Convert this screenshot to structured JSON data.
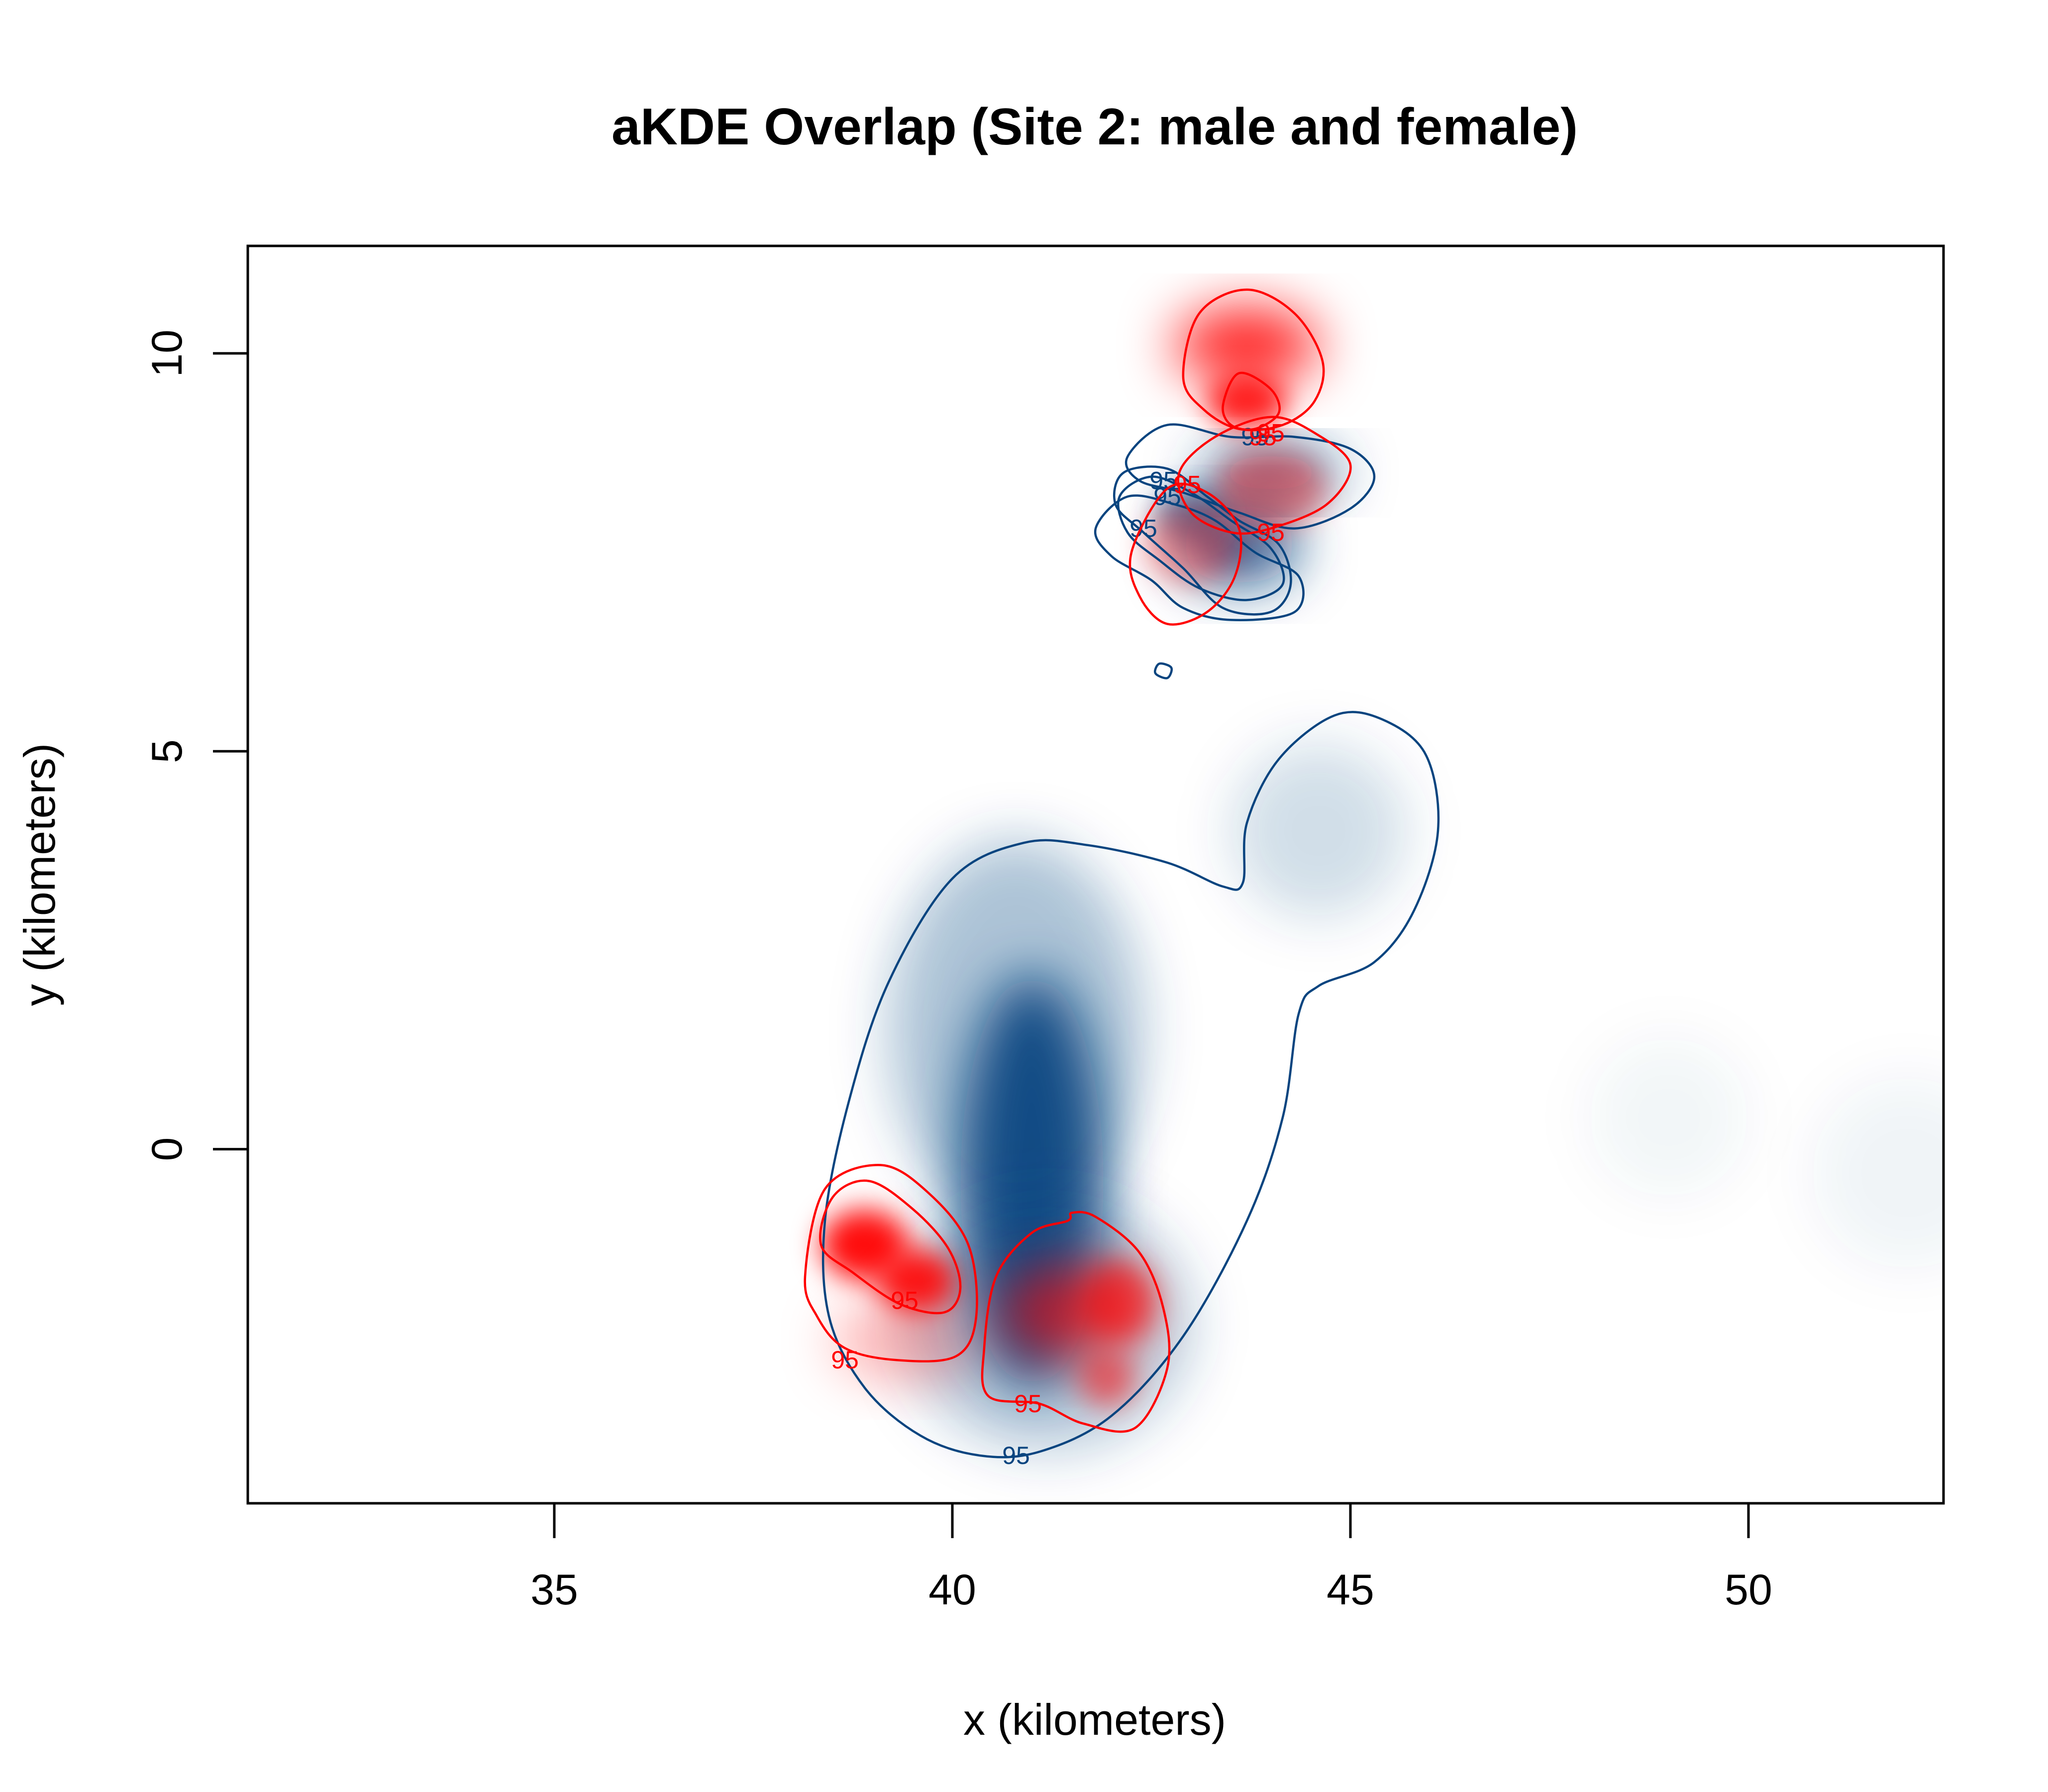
{
  "chart_data": {
    "type": "contour",
    "title": "aKDE Overlap (Site 2: male and female)",
    "xlabel": "x (kilometers)",
    "ylabel": "y (kilometers)",
    "xlim": [
      31.15,
      52.45
    ],
    "ylim": [
      -4.45,
      11.35
    ],
    "xticks": [
      35,
      40,
      45,
      50
    ],
    "yticks": [
      0,
      5,
      10
    ],
    "xtick_labels": [
      "35",
      "40",
      "45",
      "50"
    ],
    "ytick_labels": [
      "0",
      "5",
      "10"
    ],
    "grid": false,
    "legend": "none",
    "colors": {
      "male": "#08447f",
      "female": "#ff0000"
    },
    "contour_level_label": "95",
    "series": [
      {
        "color": "#08447f",
        "blobs": [
          {
            "cx": 41.0,
            "cy": -0.4,
            "rx": 0.9,
            "ry": 2.6,
            "alpha": 0.95
          },
          {
            "cx": 40.8,
            "cy": 1.5,
            "rx": 1.6,
            "ry": 2.4,
            "alpha": 0.32
          },
          {
            "cx": 41.2,
            "cy": -2.2,
            "rx": 1.8,
            "ry": 1.6,
            "alpha": 0.28
          },
          {
            "cx": 44.6,
            "cy": 4.0,
            "rx": 1.1,
            "ry": 1.1,
            "alpha": 0.18
          },
          {
            "cx": 49.0,
            "cy": 0.4,
            "rx": 1.0,
            "ry": 1.0,
            "alpha": 0.05
          },
          {
            "cx": 52.0,
            "cy": -0.3,
            "rx": 1.2,
            "ry": 1.2,
            "alpha": 0.06
          },
          {
            "cx": 43.6,
            "cy": 7.6,
            "rx": 0.75,
            "ry": 0.5,
            "alpha": 0.9
          },
          {
            "cx": 44.0,
            "cy": 8.5,
            "rx": 0.9,
            "ry": 0.28,
            "alpha": 0.85
          },
          {
            "cx": 43.0,
            "cy": 8.0,
            "rx": 0.45,
            "ry": 0.35,
            "alpha": 0.55
          }
        ],
        "contours": [
          {
            "label_x": 40.8,
            "label_y": -3.85,
            "points": [
              [
                40.35,
                -3.85
              ],
              [
                41.1,
                -3.8
              ],
              [
                42.0,
                -3.35
              ],
              [
                42.9,
                -2.35
              ],
              [
                43.7,
                -0.9
              ],
              [
                44.15,
                0.4
              ],
              [
                44.35,
                1.7
              ],
              [
                44.6,
                2.05
              ],
              [
                45.3,
                2.35
              ],
              [
                45.8,
                3.0
              ],
              [
                46.1,
                4.0
              ],
              [
                45.95,
                4.95
              ],
              [
                45.4,
                5.4
              ],
              [
                44.8,
                5.45
              ],
              [
                44.1,
                4.9
              ],
              [
                43.7,
                4.1
              ],
              [
                43.65,
                3.35
              ],
              [
                43.4,
                3.3
              ],
              [
                42.7,
                3.6
              ],
              [
                41.7,
                3.82
              ],
              [
                40.9,
                3.85
              ],
              [
                40.0,
                3.4
              ],
              [
                39.2,
                2.1
              ],
              [
                38.7,
                0.6
              ],
              [
                38.4,
                -0.9
              ],
              [
                38.45,
                -2.1
              ],
              [
                38.9,
                -3.0
              ],
              [
                39.6,
                -3.6
              ]
            ]
          },
          {
            "label_x": 43.8,
            "label_y": 8.95,
            "points": [
              [
                42.2,
                8.7
              ],
              [
                42.7,
                9.1
              ],
              [
                43.5,
                8.95
              ],
              [
                44.3,
                8.95
              ],
              [
                45.0,
                8.8
              ],
              [
                45.3,
                8.45
              ],
              [
                45.0,
                8.05
              ],
              [
                44.3,
                7.8
              ],
              [
                43.6,
                8.0
              ],
              [
                42.9,
                8.25
              ],
              [
                42.35,
                8.4
              ]
            ]
          },
          {
            "label_x": 42.65,
            "label_y": 8.4,
            "points": [
              [
                42.15,
                8.5
              ],
              [
                42.7,
                8.55
              ],
              [
                43.2,
                8.2
              ],
              [
                43.6,
                7.9
              ],
              [
                44.1,
                7.6
              ],
              [
                44.25,
                7.1
              ],
              [
                44.0,
                6.75
              ],
              [
                43.4,
                6.8
              ],
              [
                42.9,
                7.3
              ],
              [
                42.4,
                7.75
              ],
              [
                42.05,
                8.1
              ]
            ]
          },
          {
            "label_x": 42.4,
            "label_y": 7.8,
            "points": [
              [
                41.8,
                7.8
              ],
              [
                42.2,
                8.2
              ],
              [
                42.8,
                8.1
              ],
              [
                43.3,
                7.9
              ],
              [
                43.8,
                7.5
              ],
              [
                44.35,
                7.2
              ],
              [
                44.3,
                6.75
              ],
              [
                43.5,
                6.65
              ],
              [
                42.9,
                6.8
              ],
              [
                42.5,
                7.15
              ],
              [
                42.0,
                7.45
              ]
            ]
          },
          {
            "label_x": 42.7,
            "label_y": 8.2,
            "points": [
              [
                42.1,
                8.2
              ],
              [
                42.5,
                8.45
              ],
              [
                43.0,
                8.25
              ],
              [
                43.5,
                7.9
              ],
              [
                44.0,
                7.55
              ],
              [
                44.15,
                7.1
              ],
              [
                43.7,
                6.9
              ],
              [
                43.1,
                7.05
              ],
              [
                42.6,
                7.4
              ],
              [
                42.2,
                7.75
              ]
            ]
          },
          {
            "label_x": null,
            "label_y": null,
            "points": [
              [
                42.55,
                5.98
              ],
              [
                42.6,
                6.1
              ],
              [
                42.75,
                6.05
              ],
              [
                42.7,
                5.92
              ]
            ]
          }
        ]
      },
      {
        "color": "#ff0000",
        "blobs": [
          {
            "cx": 38.9,
            "cy": -1.2,
            "rx": 0.55,
            "ry": 0.45,
            "alpha": 0.95
          },
          {
            "cx": 39.55,
            "cy": -1.65,
            "rx": 0.5,
            "ry": 0.4,
            "alpha": 0.9
          },
          {
            "cx": 39.4,
            "cy": -2.4,
            "rx": 0.9,
            "ry": 0.5,
            "alpha": 0.3
          },
          {
            "cx": 41.5,
            "cy": -2.05,
            "rx": 0.9,
            "ry": 0.6,
            "alpha": 0.65
          },
          {
            "cx": 42.1,
            "cy": -1.9,
            "rx": 0.45,
            "ry": 0.5,
            "alpha": 0.6
          },
          {
            "cx": 41.95,
            "cy": -2.9,
            "rx": 0.35,
            "ry": 0.35,
            "alpha": 0.5
          },
          {
            "cx": 43.7,
            "cy": 10.1,
            "rx": 0.9,
            "ry": 0.45,
            "alpha": 0.92
          },
          {
            "cx": 43.7,
            "cy": 9.4,
            "rx": 0.5,
            "ry": 0.35,
            "alpha": 0.85
          },
          {
            "cx": 44.0,
            "cy": 8.3,
            "rx": 0.7,
            "ry": 0.5,
            "alpha": 0.4
          },
          {
            "cx": 43.0,
            "cy": 7.6,
            "rx": 0.6,
            "ry": 0.5,
            "alpha": 0.35
          }
        ],
        "contours": [
          {
            "label_x": 39.4,
            "label_y": -1.9,
            "points": [
              [
                38.35,
                -1.2
              ],
              [
                38.5,
                -0.6
              ],
              [
                38.95,
                -0.4
              ],
              [
                39.5,
                -0.75
              ],
              [
                39.95,
                -1.25
              ],
              [
                40.1,
                -1.75
              ],
              [
                39.9,
                -2.05
              ],
              [
                39.35,
                -1.95
              ],
              [
                38.75,
                -1.55
              ]
            ]
          },
          {
            "label_x": 38.65,
            "label_y": -2.65,
            "points": [
              [
                38.15,
                -1.6
              ],
              [
                38.4,
                -0.5
              ],
              [
                39.1,
                -0.2
              ],
              [
                39.7,
                -0.55
              ],
              [
                40.2,
                -1.2
              ],
              [
                40.3,
                -2.1
              ],
              [
                40.05,
                -2.6
              ],
              [
                39.3,
                -2.65
              ],
              [
                38.65,
                -2.5
              ],
              [
                38.3,
                -2.1
              ]
            ]
          },
          {
            "label_x": 40.95,
            "label_y": -3.2,
            "points": [
              [
                40.4,
                -2.5
              ],
              [
                40.55,
                -1.6
              ],
              [
                41.0,
                -1.05
              ],
              [
                41.45,
                -0.9
              ],
              [
                41.5,
                -0.8
              ],
              [
                41.8,
                -0.85
              ],
              [
                42.35,
                -1.3
              ],
              [
                42.65,
                -2.0
              ],
              [
                42.7,
                -2.75
              ],
              [
                42.3,
                -3.5
              ],
              [
                41.65,
                -3.45
              ],
              [
                41.1,
                -3.2
              ],
              [
                40.45,
                -3.1
              ]
            ]
          },
          {
            "label_x": 43.9,
            "label_y": 8.95,
            "points": [
              [
                42.9,
                9.7
              ],
              [
                43.1,
                10.5
              ],
              [
                43.7,
                10.8
              ],
              [
                44.3,
                10.5
              ],
              [
                44.65,
                9.9
              ],
              [
                44.55,
                9.4
              ],
              [
                44.15,
                9.1
              ],
              [
                43.6,
                9.05
              ],
              [
                43.15,
                9.3
              ]
            ]
          },
          {
            "label_x": 44.0,
            "label_y": 9.0,
            "points": [
              [
                43.4,
                9.35
              ],
              [
                43.6,
                9.75
              ],
              [
                44.0,
                9.55
              ],
              [
                44.1,
                9.25
              ],
              [
                43.8,
                9.05
              ],
              [
                43.5,
                9.1
              ]
            ]
          },
          {
            "label_x": 44.0,
            "label_y": 7.75,
            "points": [
              [
                42.85,
                8.5
              ],
              [
                43.3,
                8.95
              ],
              [
                44.0,
                9.2
              ],
              [
                44.55,
                9.0
              ],
              [
                45.0,
                8.6
              ],
              [
                44.7,
                8.1
              ],
              [
                44.0,
                7.8
              ],
              [
                43.5,
                7.75
              ],
              [
                43.0,
                8.0
              ]
            ]
          },
          {
            "label_x": 42.95,
            "label_y": 8.35,
            "points": [
              [
                42.25,
                7.5
              ],
              [
                42.7,
                8.3
              ],
              [
                43.2,
                8.25
              ],
              [
                43.6,
                7.8
              ],
              [
                43.55,
                7.2
              ],
              [
                43.2,
                6.75
              ],
              [
                42.7,
                6.6
              ],
              [
                42.35,
                6.95
              ]
            ]
          }
        ]
      }
    ]
  }
}
